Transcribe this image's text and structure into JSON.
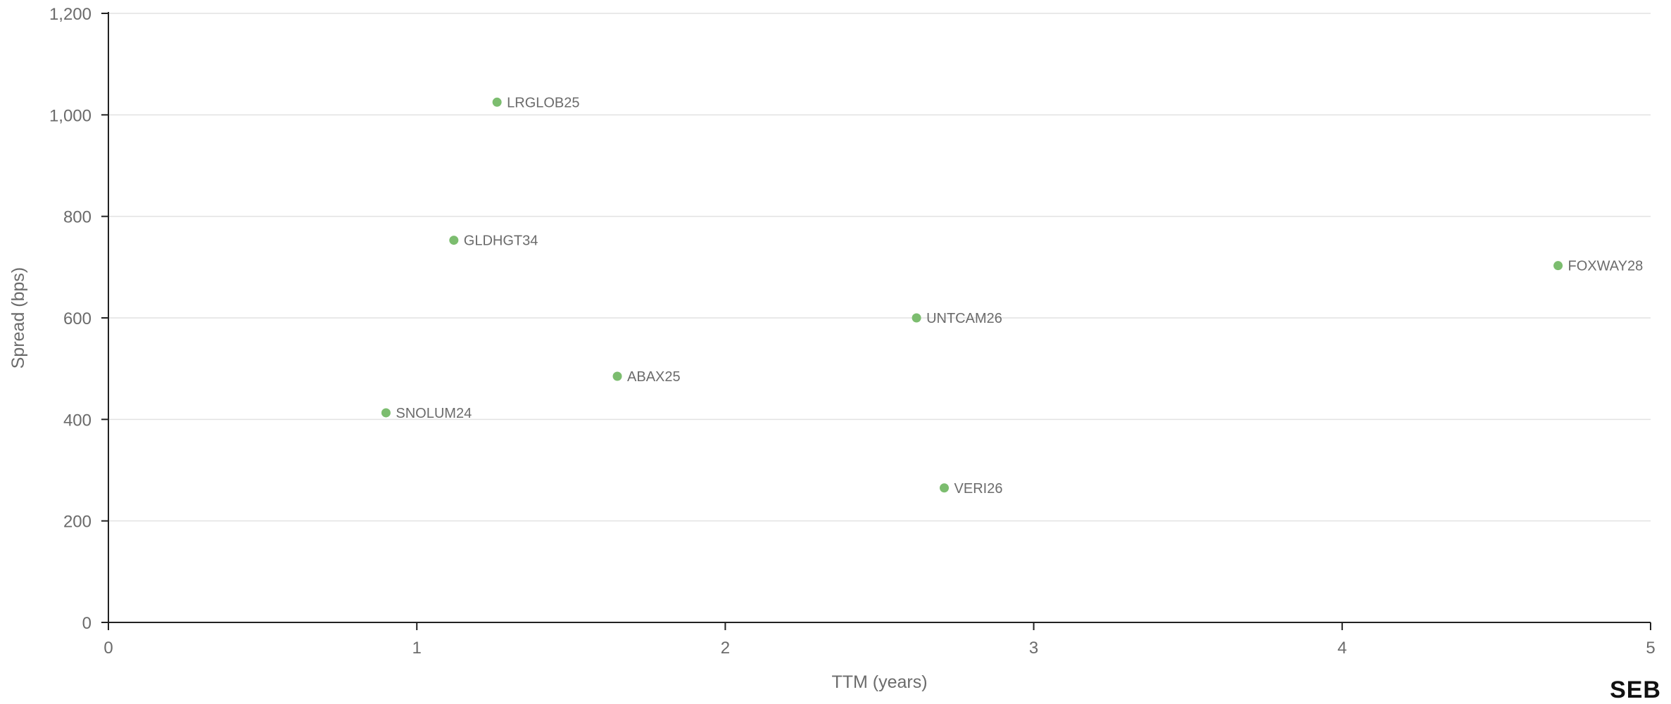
{
  "chart_data": {
    "type": "scatter",
    "title": "",
    "xlabel": "TTM (years)",
    "ylabel": "Spread (bps)",
    "xlim": [
      0,
      5
    ],
    "ylim": [
      0,
      1200
    ],
    "xticks": [
      0,
      1,
      2,
      3,
      4,
      5
    ],
    "yticks": [
      0,
      200,
      400,
      600,
      800,
      1000,
      1200
    ],
    "xtick_labels": [
      "0",
      "1",
      "2",
      "3",
      "4",
      "5"
    ],
    "ytick_labels": [
      "0",
      "200",
      "400",
      "600",
      "800",
      "1,000",
      "1,200"
    ],
    "grid": "horizontal",
    "points": [
      {
        "label": "LRGLOB25",
        "x": 1.26,
        "y": 1025
      },
      {
        "label": "GLDHGT34",
        "x": 1.12,
        "y": 753
      },
      {
        "label": "FOXWAY28",
        "x": 4.7,
        "y": 703
      },
      {
        "label": "UNTCAM26",
        "x": 2.62,
        "y": 600
      },
      {
        "label": "ABAX25",
        "x": 1.65,
        "y": 485
      },
      {
        "label": "SNOLUM24",
        "x": 0.9,
        "y": 413
      },
      {
        "label": "VERI26",
        "x": 2.71,
        "y": 265
      }
    ],
    "marker_color": "#7cbd6f"
  },
  "logo_text": "SEB"
}
